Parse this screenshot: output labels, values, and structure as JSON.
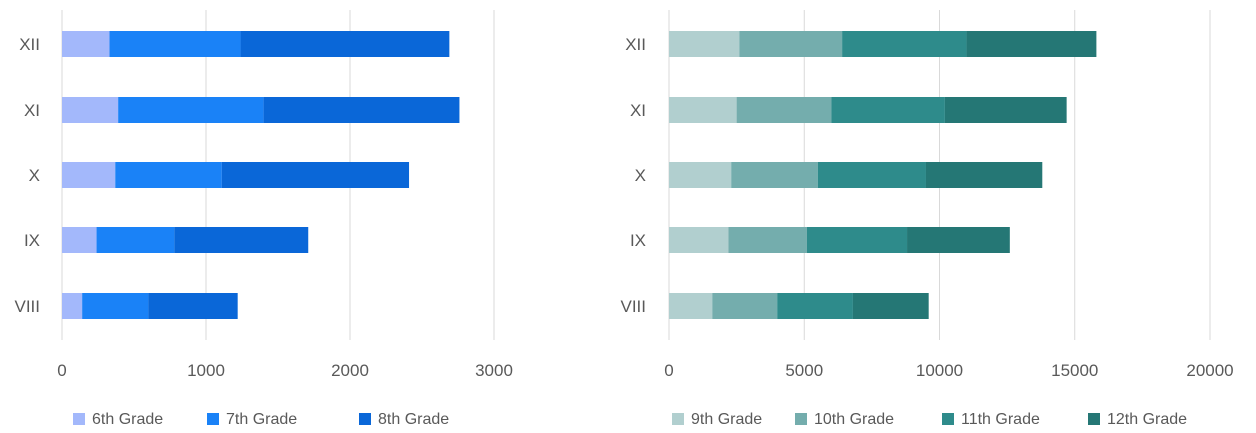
{
  "chart_data": [
    {
      "type": "bar",
      "orientation": "horizontal",
      "stacked": true,
      "title": "",
      "xlabel": "",
      "ylabel": "",
      "categories": [
        "VIII",
        "IX",
        "X",
        "XI",
        "XII"
      ],
      "xlim": [
        0,
        3500
      ],
      "xticks": [
        0,
        1000,
        2000,
        3000
      ],
      "grid": true,
      "legend_position": "bottom",
      "series": [
        {
          "name": "6th Grade",
          "color": "#a3b8fb",
          "values": [
            140,
            240,
            370,
            390,
            330
          ]
        },
        {
          "name": "7th Grade",
          "color": "#1a82f7",
          "values": [
            460,
            540,
            740,
            1010,
            910
          ]
        },
        {
          "name": "8th Grade",
          "color": "#0a67d8",
          "values": [
            620,
            930,
            1300,
            1360,
            1450
          ]
        }
      ]
    },
    {
      "type": "bar",
      "orientation": "horizontal",
      "stacked": true,
      "title": "",
      "xlabel": "",
      "ylabel": "",
      "categories": [
        "VIII",
        "IX",
        "X",
        "XI",
        "XII"
      ],
      "xlim": [
        0,
        20000
      ],
      "xticks": [
        0,
        5000,
        10000,
        15000,
        20000
      ],
      "grid": true,
      "legend_position": "bottom",
      "series": [
        {
          "name": "9th Grade",
          "color": "#b1cfcf",
          "values": [
            1600,
            2200,
            2300,
            2500,
            2600
          ]
        },
        {
          "name": "10th Grade",
          "color": "#74adad",
          "values": [
            2400,
            2900,
            3200,
            3500,
            3800
          ]
        },
        {
          "name": "11th Grade",
          "color": "#2e8b8b",
          "values": [
            2800,
            3700,
            4000,
            4200,
            4600
          ]
        },
        {
          "name": "12th Grade",
          "color": "#257775",
          "values": [
            2800,
            3800,
            4300,
            4500,
            4800
          ]
        }
      ]
    }
  ]
}
